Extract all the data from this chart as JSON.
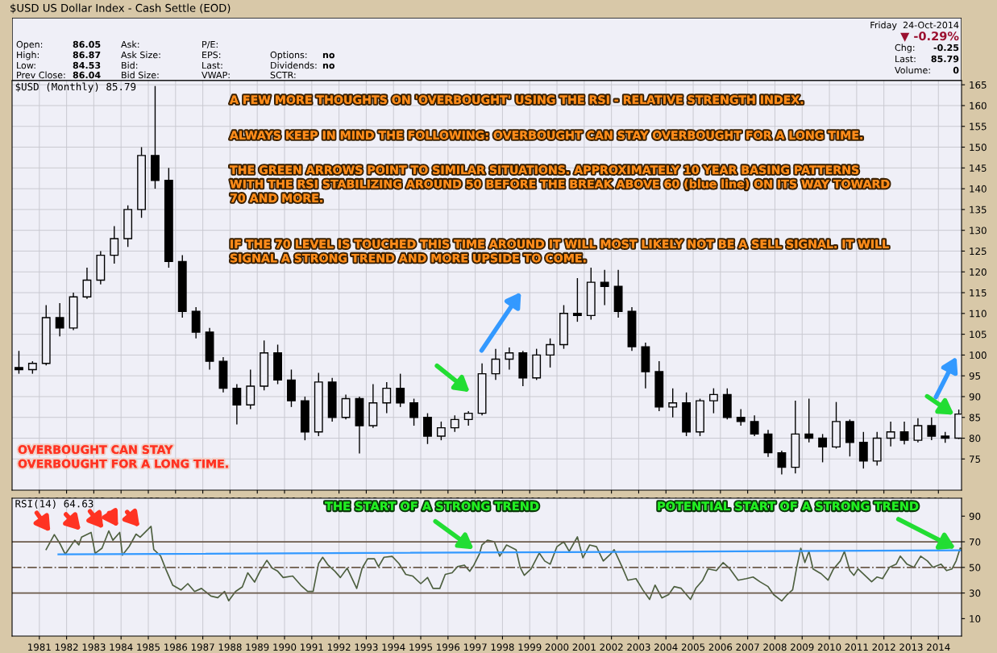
{
  "chart_data": [
    {
      "type": "other",
      "title": "$USD US Dollar Index - Cash Settle (EOD)",
      "annotations": [
        "Open:",
        "86.05",
        "High:",
        "86.87",
        "Low:",
        "84.53",
        "Prev Close:",
        "86.04",
        "Ask:",
        "Ask Size:",
        "Bid:",
        "Bid Size:",
        "P/E:",
        "EPS:",
        "Last:",
        "VWAP:",
        "Options:",
        "no",
        "Dividends:",
        "no",
        "SCTR:",
        "Friday  24-Oct-2014",
        "▼ -0.29%",
        "Chg:",
        "-0.25",
        "Last:",
        "85.79",
        "Volume:",
        "0"
      ]
    },
    {
      "type": "candlestick",
      "subtitle": "$USD (Monthly) 85.79",
      "x": [
        1980.25,
        1980.75,
        1981.25,
        1981.75,
        1982.25,
        1982.75,
        1983.25,
        1983.75,
        1984.25,
        1984.75,
        1985.25,
        1985.75,
        1986.25,
        1986.75,
        1987.25,
        1987.75,
        1988.25,
        1988.75,
        1989.25,
        1989.75,
        1990.25,
        1990.75,
        1991.25,
        1991.75,
        1992.25,
        1992.75,
        1993.25,
        1993.75,
        1994.25,
        1994.75,
        1995.25,
        1995.75,
        1996.25,
        1996.75,
        1997.25,
        1997.75,
        1998.25,
        1998.75,
        1999.25,
        1999.75,
        2000.25,
        2000.75,
        2001.25,
        2001.75,
        2002.25,
        2002.75,
        2003.25,
        2003.75,
        2004.25,
        2004.75,
        2005.25,
        2005.75,
        2006.25,
        2006.75,
        2007.25,
        2007.75,
        2008.25,
        2008.75,
        2009.25,
        2009.75,
        2010.25,
        2010.75,
        2011.25,
        2011.75,
        2012.25,
        2012.75,
        2013.25,
        2013.75,
        2014.25,
        2014.75
      ],
      "ohlc": [
        [
          97.0,
          101.0,
          95.5,
          96.5
        ],
        [
          96.5,
          98.5,
          95.5,
          98.0
        ],
        [
          98.0,
          112.0,
          97.5,
          109.0
        ],
        [
          109.0,
          112.5,
          104.5,
          106.5
        ],
        [
          106.5,
          115.0,
          106.0,
          114.0
        ],
        [
          114.0,
          121.0,
          113.5,
          118.0
        ],
        [
          118.0,
          125.0,
          117.0,
          124.0
        ],
        [
          124.0,
          131.0,
          122.0,
          128.0
        ],
        [
          128.0,
          136.0,
          126.0,
          135.0
        ],
        [
          135.0,
          150.0,
          133.0,
          148.0
        ],
        [
          148.0,
          164.7,
          140.0,
          142.0
        ],
        [
          142.0,
          145.0,
          121.0,
          122.5
        ],
        [
          122.5,
          124.0,
          109.0,
          110.5
        ],
        [
          110.5,
          111.5,
          104.0,
          105.5
        ],
        [
          105.5,
          106.5,
          96.5,
          98.5
        ],
        [
          98.5,
          99.5,
          91.0,
          92.0
        ],
        [
          92.0,
          93.0,
          83.3,
          88.0
        ],
        [
          88.0,
          96.5,
          87.0,
          92.5
        ],
        [
          92.5,
          103.5,
          91.5,
          100.5
        ],
        [
          100.5,
          102.5,
          93.0,
          94.0
        ],
        [
          94.0,
          96.5,
          87.5,
          89.0
        ],
        [
          89.0,
          90.0,
          79.5,
          81.5
        ],
        [
          81.5,
          95.7,
          80.5,
          93.5
        ],
        [
          93.5,
          94.5,
          84.0,
          85.0
        ],
        [
          85.0,
          90.5,
          84.5,
          89.5
        ],
        [
          89.5,
          90.0,
          76.3,
          83.0
        ],
        [
          83.0,
          93.0,
          82.5,
          88.5
        ],
        [
          88.5,
          93.5,
          86.0,
          92.0
        ],
        [
          92.0,
          95.5,
          87.5,
          88.5
        ],
        [
          88.5,
          89.5,
          83.0,
          85.0
        ],
        [
          85.0,
          86.0,
          78.6,
          80.5
        ],
        [
          80.5,
          84.0,
          79.5,
          82.5
        ],
        [
          82.5,
          85.5,
          81.5,
          84.5
        ],
        [
          84.5,
          86.5,
          83.0,
          86.0
        ],
        [
          86.0,
          98.0,
          85.5,
          95.5
        ],
        [
          95.5,
          101.5,
          94.0,
          99.0
        ],
        [
          99.0,
          101.8,
          96.5,
          100.5
        ],
        [
          100.5,
          101.0,
          92.5,
          94.5
        ],
        [
          94.5,
          101.5,
          94.0,
          100.0
        ],
        [
          100.0,
          104.0,
          97.0,
          102.5
        ],
        [
          102.5,
          112.0,
          101.5,
          110.0
        ],
        [
          110.0,
          118.5,
          108.0,
          109.5
        ],
        [
          109.5,
          121.0,
          108.5,
          117.5
        ],
        [
          117.5,
          120.5,
          112.0,
          116.5
        ],
        [
          116.5,
          120.5,
          109.0,
          110.5
        ],
        [
          110.5,
          111.5,
          101.0,
          102.0
        ],
        [
          102.0,
          103.0,
          92.0,
          96.0
        ],
        [
          96.0,
          98.5,
          86.5,
          87.5
        ],
        [
          87.5,
          92.0,
          85.0,
          88.5
        ],
        [
          88.5,
          91.0,
          80.5,
          81.5
        ],
        [
          81.5,
          89.5,
          80.5,
          89.0
        ],
        [
          89.0,
          92.0,
          86.0,
          90.5
        ],
        [
          90.5,
          92.0,
          84.5,
          85.0
        ],
        [
          85.0,
          87.0,
          83.0,
          84.0
        ],
        [
          84.0,
          85.5,
          80.5,
          81.0
        ],
        [
          81.0,
          82.0,
          75.5,
          76.5
        ],
        [
          76.5,
          77.0,
          71.3,
          73.0
        ],
        [
          73.0,
          89.0,
          71.5,
          81.0
        ],
        [
          81.0,
          89.5,
          79.0,
          80.0
        ],
        [
          80.0,
          81.0,
          74.2,
          77.9
        ],
        [
          77.9,
          88.7,
          77.5,
          84.0
        ],
        [
          84.0,
          84.5,
          75.6,
          79.0
        ],
        [
          79.0,
          81.5,
          72.7,
          74.5
        ],
        [
          74.5,
          81.5,
          73.4,
          80.0
        ],
        [
          80.0,
          84.0,
          78.0,
          81.5
        ],
        [
          81.5,
          84.0,
          78.5,
          79.5
        ],
        [
          79.5,
          84.8,
          79.0,
          83.0
        ],
        [
          83.0,
          85.0,
          79.5,
          80.5
        ],
        [
          80.5,
          81.5,
          78.9,
          80.0
        ],
        [
          80.0,
          86.9,
          79.8,
          85.8
        ]
      ],
      "color": "#000000",
      "xlim": [
        1980.0,
        2014.85
      ],
      "xticks": [
        1981,
        1982,
        1983,
        1984,
        1985,
        1986,
        1987,
        1988,
        1989,
        1990,
        1991,
        1992,
        1993,
        1994,
        1995,
        1996,
        1997,
        1998,
        1999,
        2000,
        2001,
        2002,
        2003,
        2004,
        2005,
        2006,
        2007,
        2008,
        2009,
        2010,
        2011,
        2012,
        2013,
        2014
      ],
      "ylim": [
        67.5,
        166
      ],
      "yticks": [
        75,
        80,
        85,
        90,
        95,
        100,
        105,
        110,
        115,
        120,
        125,
        130,
        135,
        140,
        145,
        150,
        155,
        160,
        165
      ],
      "grid": true,
      "annotations": [
        "A FEW MORE THOUGHTS ON 'OVERBOUGHT' USING THE RSI - RELATIVE STRENGTH INDEX.",
        "ALWAYS KEEP IN MIND THE FOLLOWING: OVERBOUGHT CAN STAY OVERBOUGHT FOR A LONG TIME.",
        "THE GREEN ARROWS POINT TO SIMILAR SITUATIONS. APPROXIMATELY 10 YEAR BASING PATTERNS\nWITH THE RSI STABILIZING AROUND 50 BEFORE THE BREAK ABOVE 60 (blue line) ON ITS WAY TOWARD\n70 AND MORE.",
        "IF THE 70 LEVEL IS TOUCHED THIS TIME AROUND IT WILL MOST LIKELY NOT BE A SELL SIGNAL. IT WILL\nSIGNAL A STRONG TREND AND MORE UPSIDE TO COME.",
        "OVERBOUGHT CAN STAY\nOVERBOUGHT FOR A LONG TIME."
      ]
    },
    {
      "type": "line",
      "subtitle": "RSI(14) 64.63",
      "series": [
        {
          "color": "#4d5f3f",
          "x": [
            1981.25,
            1981.55,
            1981.75,
            1981.95,
            1982.3,
            1982.45,
            1982.55,
            1982.9,
            1983.05,
            1983.3,
            1983.55,
            1983.7,
            1983.95,
            1984.05,
            1984.3,
            1984.55,
            1984.7,
            1985.1,
            1985.2,
            1985.45,
            1985.65,
            1985.9,
            1986.2,
            1986.45,
            1986.7,
            1986.95,
            1987.3,
            1987.55,
            1987.8,
            1987.95,
            1988.2,
            1988.45,
            1988.65,
            1988.9,
            1989.1,
            1989.35,
            1989.55,
            1989.75,
            1989.95,
            1990.3,
            1990.6,
            1990.85,
            1991.05,
            1991.25,
            1991.4,
            1991.6,
            1991.85,
            1992.05,
            1992.3,
            1992.65,
            1992.85,
            1993.05,
            1993.3,
            1993.45,
            1993.65,
            1993.95,
            1994.2,
            1994.45,
            1994.7,
            1995.0,
            1995.25,
            1995.45,
            1995.7,
            1995.9,
            1996.15,
            1996.35,
            1996.6,
            1996.8,
            1996.95,
            1997.15,
            1997.25,
            1997.45,
            1997.7,
            1997.9,
            1998.15,
            1998.5,
            1998.65,
            1998.8,
            1999.05,
            1999.35,
            1999.55,
            1999.75,
            2000.0,
            2000.25,
            2000.45,
            2000.75,
            2000.95,
            2001.2,
            2001.45,
            2001.7,
            2001.95,
            2002.1,
            2002.4,
            2002.6,
            2002.9,
            2003.15,
            2003.4,
            2003.6,
            2003.85,
            2004.1,
            2004.3,
            2004.55,
            2004.9,
            2005.1,
            2005.35,
            2005.55,
            2005.85,
            2006.1,
            2006.35,
            2006.65,
            2006.95,
            2007.2,
            2007.45,
            2007.75,
            2007.95,
            2008.25,
            2008.45,
            2008.65,
            2008.8,
            2008.95,
            2009.1,
            2009.25,
            2009.4,
            2009.7,
            2009.95,
            2010.15,
            2010.4,
            2010.55,
            2010.75,
            2010.9,
            2011.05,
            2011.3,
            2011.55,
            2011.75,
            2011.95,
            2012.2,
            2012.45,
            2012.6,
            2012.85,
            2013.1,
            2013.35,
            2013.6,
            2013.8,
            2014.1,
            2014.3,
            2014.5,
            2014.65,
            2014.8,
            2014.85
          ],
          "values": [
            64,
            75.6,
            68.8,
            60.3,
            71.2,
            67.6,
            73.6,
            77.3,
            61,
            65,
            78.5,
            71.2,
            77.3,
            59.6,
            66.4,
            76,
            73.6,
            82,
            64,
            59,
            48.2,
            36,
            32.4,
            37.3,
            31.2,
            33.6,
            27.6,
            26.4,
            31.2,
            24,
            31.2,
            34.8,
            45.8,
            38.5,
            47,
            55.5,
            49.4,
            47,
            42.1,
            43.3,
            36,
            31.2,
            31.2,
            53,
            57.9,
            51.8,
            47,
            42.1,
            49.4,
            33.6,
            49.4,
            56.7,
            56.7,
            50.6,
            57.9,
            58.6,
            53,
            44.5,
            43.3,
            37.3,
            42.1,
            33.6,
            33.6,
            44.5,
            45.8,
            50.6,
            51.8,
            47,
            51.8,
            60.3,
            67.6,
            71.2,
            70,
            58.8,
            67.5,
            63.8,
            50,
            43.8,
            48.8,
            61.2,
            55,
            52.5,
            66.2,
            70,
            62.5,
            73.8,
            57.5,
            67.5,
            66.2,
            55,
            60,
            63.8,
            50,
            40,
            41.2,
            32.5,
            25,
            36.2,
            26.2,
            28.8,
            35,
            33.8,
            25,
            33.8,
            40,
            48.8,
            47.5,
            53.8,
            48.8,
            40,
            41.2,
            42.5,
            38.8,
            35,
            28.8,
            23.8,
            28.8,
            32.5,
            50,
            65,
            53.8,
            62.5,
            48.8,
            45,
            40,
            48.8,
            55,
            62.5,
            47.5,
            43.8,
            48.8,
            43.8,
            38.8,
            42.5,
            41.2,
            50,
            52.5,
            58.8,
            52.5,
            50,
            58.8,
            55,
            50,
            52.5,
            47.5,
            48.8,
            55,
            65,
            64.6
          ]
        },
        {
          "color": "#3399ff",
          "x": [
            1981.7,
            2014.85
          ],
          "values": [
            60.2,
            63.3
          ]
        }
      ],
      "ref_lines": [
        {
          "axis": "y",
          "value": 70,
          "color": "#6b5a4a",
          "line_style": "solid"
        },
        {
          "axis": "y",
          "value": 30,
          "color": "#6b5a4a",
          "line_style": "solid"
        },
        {
          "axis": "y",
          "value": 50,
          "color": "#6b5a4a",
          "line_style": "dashdot"
        }
      ],
      "xlim": [
        1980.0,
        2014.85
      ],
      "xticks": [
        1981,
        1982,
        1983,
        1984,
        1985,
        1986,
        1987,
        1988,
        1989,
        1990,
        1991,
        1992,
        1993,
        1994,
        1995,
        1996,
        1997,
        1998,
        1999,
        2000,
        2001,
        2002,
        2003,
        2004,
        2005,
        2006,
        2007,
        2008,
        2009,
        2010,
        2011,
        2012,
        2013,
        2014
      ],
      "ylim": [
        -3.6,
        104
      ],
      "yticks": [
        10,
        30,
        50,
        70,
        90
      ],
      "grid": "x",
      "annotations": [
        "THE START OF A STRONG TREND",
        {
          "text": "POTENTIAL START OF A STRONG TREND",
          "x": 2014.7,
          "y": 64
        }
      ]
    }
  ]
}
